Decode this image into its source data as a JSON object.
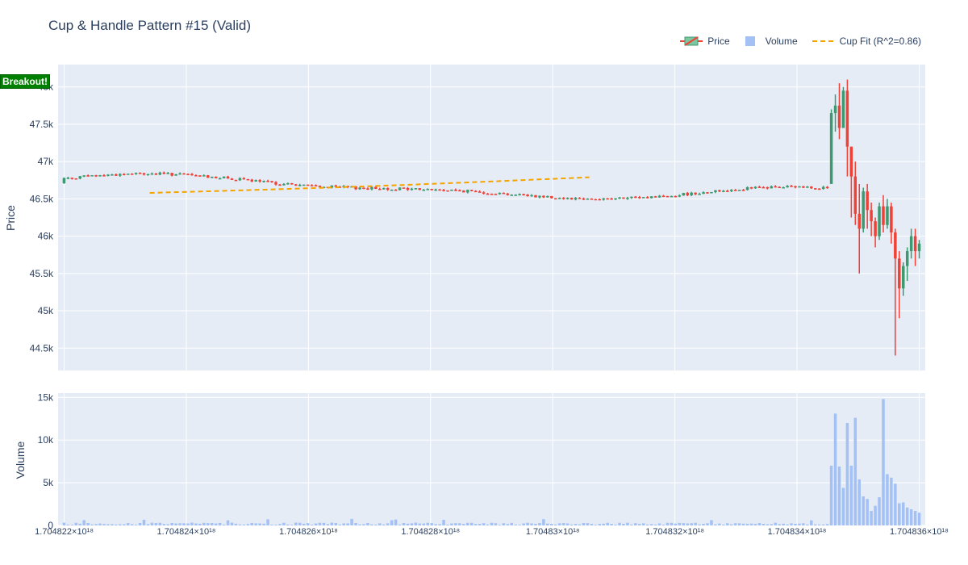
{
  "chart_data": [
    {
      "type": "candlestick",
      "title": "Cup & Handle Pattern #15 (Valid)",
      "ylabel": "Price",
      "ylim": [
        44200,
        48300
      ],
      "yticks": [
        "44.5k",
        "45k",
        "45.5k",
        "46k",
        "46.5k",
        "47k",
        "47.5k",
        "48k"
      ],
      "yticks_values": [
        44500,
        45000,
        45500,
        46000,
        46500,
        47000,
        47500,
        48000
      ],
      "legend_placement": "top-right",
      "series": [
        {
          "name": "Price",
          "kind": "candlestick",
          "up_color": "#3d9970",
          "down_color": "#ef4136"
        },
        {
          "name": "Cup Fit (R^2=0.86)",
          "kind": "dashed-line",
          "color": "#f4a300",
          "x_start": 1.7048234e+18,
          "x_end": 1.7048306e+18,
          "values_start_end": [
            46580,
            46790
          ]
        }
      ],
      "summary_points": {
        "baseline_level": 46700,
        "spike_high": 48100,
        "crash_low": 44400,
        "last_close": 45900
      },
      "annotation": "Breakout!"
    },
    {
      "type": "bar",
      "ylabel": "Volume",
      "ylim": [
        0,
        15500
      ],
      "yticks": [
        "0",
        "5k",
        "10k",
        "15k"
      ],
      "yticks_values": [
        0,
        5000,
        10000,
        15000
      ],
      "series": [
        {
          "name": "Volume",
          "color": "#a3c1f5"
        }
      ],
      "peak_volume": 14800
    }
  ],
  "x_axis": {
    "range": [
      1.7048219e+18,
      1.7048361e+18
    ],
    "tick_values": [
      1.704822e+18,
      1.704824e+18,
      1.704826e+18,
      1.704828e+18,
      1.70483e+18,
      1.704832e+18,
      1.704834e+18,
      1.704836e+18
    ],
    "tick_labels": [
      "1.704822×10¹⁸",
      "1.704824×10¹⁸",
      "1.704826×10¹⁸",
      "1.704828×10¹⁸",
      "1.70483×10¹⁸",
      "1.704832×10¹⁸",
      "1.704834×10¹⁸",
      "1.704836×10¹⁸"
    ]
  },
  "legend": {
    "price": "Price",
    "volume": "Volume",
    "cup": "Cup Fit (R^2=0.86)"
  },
  "colors": {
    "plot_bg": "#e5ecf6",
    "grid": "#ffffff",
    "text": "#2a3f5f",
    "up": "#3d9970",
    "down": "#ef4136",
    "volume": "#a3c1f5",
    "cup": "#f4a300",
    "breakout_bg": "#008000"
  }
}
